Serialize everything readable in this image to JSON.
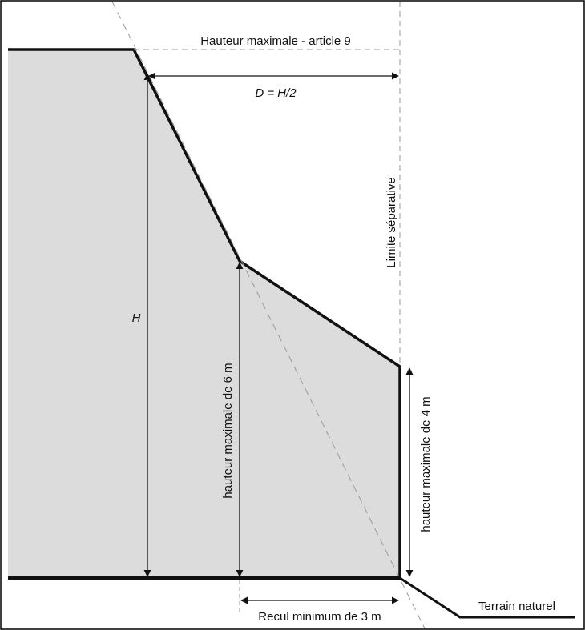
{
  "labels": {
    "max_height": "Hauteur maximale - article 9",
    "distance_formula": "D = H/2",
    "h": "H",
    "separation_limit": "Limite séparative",
    "max_height_6m": "hauteur maximale de 6 m",
    "max_height_4m": "hauteur maximale de 4 m",
    "min_setback": "Recul minimum de 3 m",
    "natural_ground": "Terrain naturel"
  },
  "colors": {
    "building_fill": "#dcdcdc",
    "outline": "#111111",
    "guide_line": "#9a9a9a",
    "frame": "#000000"
  }
}
